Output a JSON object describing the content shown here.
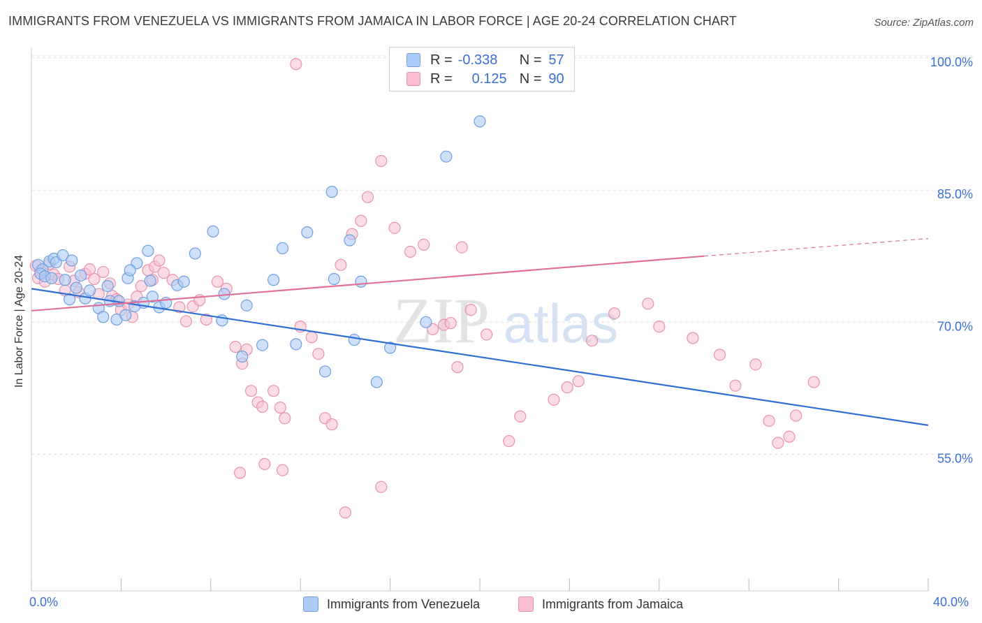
{
  "title": "IMMIGRANTS FROM VENEZUELA VS IMMIGRANTS FROM JAMAICA IN LABOR FORCE | AGE 20-24 CORRELATION CHART",
  "source": "Source: ZipAtlas.com",
  "watermark": {
    "zip": "ZIP",
    "atlas": "atlas"
  },
  "legend": {
    "venezuela": {
      "r_label": "R =",
      "r_value": "-0.338",
      "n_label": "N =",
      "n_value": "57"
    },
    "jamaica": {
      "r_label": "R =",
      "r_value": "0.125",
      "n_label": "N =",
      "n_value": "90"
    }
  },
  "bottom_legend": {
    "venezuela": "Immigrants from Venezuela",
    "jamaica": "Immigrants from Jamaica"
  },
  "colors": {
    "venezuela_fill": "#aecbf5",
    "venezuela_stroke": "#6f9fe0",
    "venezuela_line": "#2f6fd3",
    "jamaica_fill": "#f7bfd0",
    "jamaica_stroke": "#e892ae",
    "jamaica_line": "#e0709a",
    "axis_text": "#3a6fd8"
  },
  "chart_data": {
    "type": "scatter",
    "title": "IMMIGRANTS FROM VENEZUELA VS IMMIGRANTS FROM JAMAICA IN LABOR FORCE | AGE 20-24 CORRELATION CHART",
    "xlabel": "",
    "ylabel": "In Labor Force | Age 20-24",
    "xlim": [
      0,
      40
    ],
    "ylim": [
      39.5,
      101.5
    ],
    "x_tick_labels": [
      "0.0%",
      "40.0%"
    ],
    "y_ticks": [
      55,
      70,
      85,
      100
    ],
    "y_tick_labels": [
      "55.0%",
      "70.0%",
      "85.0%",
      "100.0%"
    ],
    "grid": true,
    "series": [
      {
        "name": "Immigrants from Venezuela",
        "trend": {
          "x": [
            0,
            40
          ],
          "y": [
            73.8,
            58.3
          ]
        },
        "points": [
          [
            0.3,
            76.5
          ],
          [
            0.5,
            76.0
          ],
          [
            0.4,
            75.5
          ],
          [
            0.8,
            76.9
          ],
          [
            0.6,
            75.2
          ],
          [
            1.0,
            77.2
          ],
          [
            1.1,
            76.8
          ],
          [
            0.9,
            75.0
          ],
          [
            1.4,
            77.6
          ],
          [
            1.8,
            77.0
          ],
          [
            1.5,
            74.8
          ],
          [
            2.2,
            75.3
          ],
          [
            2.4,
            72.7
          ],
          [
            1.7,
            72.6
          ],
          [
            2.6,
            73.6
          ],
          [
            2.0,
            73.9
          ],
          [
            3.4,
            74.1
          ],
          [
            3.5,
            72.4
          ],
          [
            3.0,
            71.6
          ],
          [
            3.2,
            70.6
          ],
          [
            3.8,
            70.3
          ],
          [
            4.2,
            70.8
          ],
          [
            4.6,
            71.8
          ],
          [
            4.3,
            75.0
          ],
          [
            5.3,
            74.7
          ],
          [
            4.7,
            76.7
          ],
          [
            4.4,
            75.9
          ],
          [
            5.0,
            72.2
          ],
          [
            5.4,
            72.9
          ],
          [
            5.7,
            71.7
          ],
          [
            6.0,
            72.2
          ],
          [
            6.5,
            74.2
          ],
          [
            6.8,
            74.6
          ],
          [
            7.3,
            77.8
          ],
          [
            8.1,
            80.3
          ],
          [
            5.2,
            78.1
          ],
          [
            3.9,
            72.4
          ],
          [
            8.6,
            73.2
          ],
          [
            8.5,
            70.2
          ],
          [
            9.6,
            71.9
          ],
          [
            10.3,
            67.4
          ],
          [
            9.4,
            66.1
          ],
          [
            10.8,
            74.8
          ],
          [
            13.4,
            84.8
          ],
          [
            12.3,
            80.2
          ],
          [
            11.2,
            78.4
          ],
          [
            13.5,
            74.9
          ],
          [
            14.4,
            68.0
          ],
          [
            16.0,
            67.1
          ],
          [
            17.6,
            70.0
          ],
          [
            20.0,
            92.8
          ],
          [
            18.5,
            88.8
          ],
          [
            14.2,
            79.3
          ],
          [
            14.7,
            74.6
          ],
          [
            11.8,
            67.5
          ],
          [
            13.1,
            64.4
          ],
          [
            15.4,
            63.2
          ]
        ]
      },
      {
        "name": "Immigrants from Jamaica",
        "trend": {
          "x": [
            0,
            30
          ],
          "y": [
            71.3,
            77.5
          ],
          "dashed_to": [
            40,
            79.5
          ]
        },
        "points": [
          [
            0.2,
            76.4
          ],
          [
            0.4,
            75.8
          ],
          [
            0.3,
            75.0
          ],
          [
            0.6,
            74.6
          ],
          [
            0.8,
            76.6
          ],
          [
            1.0,
            75.4
          ],
          [
            1.2,
            74.9
          ],
          [
            1.5,
            73.6
          ],
          [
            1.7,
            76.3
          ],
          [
            1.9,
            74.7
          ],
          [
            2.1,
            73.4
          ],
          [
            2.4,
            75.5
          ],
          [
            2.6,
            76.0
          ],
          [
            2.8,
            74.9
          ],
          [
            3.0,
            73.2
          ],
          [
            3.2,
            75.7
          ],
          [
            3.5,
            74.4
          ],
          [
            3.6,
            73.0
          ],
          [
            3.8,
            72.6
          ],
          [
            4.0,
            71.4
          ],
          [
            4.3,
            72.0
          ],
          [
            4.5,
            70.6
          ],
          [
            4.7,
            72.9
          ],
          [
            4.9,
            74.1
          ],
          [
            5.2,
            75.9
          ],
          [
            5.4,
            74.8
          ],
          [
            5.5,
            76.3
          ],
          [
            5.7,
            77.0
          ],
          [
            5.9,
            75.6
          ],
          [
            6.3,
            74.8
          ],
          [
            6.6,
            71.7
          ],
          [
            6.9,
            70.1
          ],
          [
            7.2,
            71.8
          ],
          [
            7.5,
            72.5
          ],
          [
            7.8,
            70.3
          ],
          [
            8.3,
            74.6
          ],
          [
            8.7,
            73.8
          ],
          [
            9.1,
            67.2
          ],
          [
            9.4,
            65.3
          ],
          [
            9.6,
            66.9
          ],
          [
            9.8,
            62.2
          ],
          [
            10.1,
            60.9
          ],
          [
            10.3,
            60.4
          ],
          [
            10.8,
            62.2
          ],
          [
            11.1,
            60.3
          ],
          [
            11.3,
            59.1
          ],
          [
            12.0,
            69.5
          ],
          [
            12.5,
            68.3
          ],
          [
            12.8,
            66.4
          ],
          [
            13.1,
            59.1
          ],
          [
            13.4,
            58.4
          ],
          [
            13.8,
            76.5
          ],
          [
            14.3,
            80.0
          ],
          [
            14.7,
            81.5
          ],
          [
            15.0,
            84.2
          ],
          [
            15.6,
            88.3
          ],
          [
            16.2,
            80.7
          ],
          [
            16.9,
            78.0
          ],
          [
            17.5,
            78.8
          ],
          [
            17.9,
            69.2
          ],
          [
            18.4,
            69.7
          ],
          [
            18.7,
            69.9
          ],
          [
            19.0,
            64.9
          ],
          [
            19.2,
            78.5
          ],
          [
            19.6,
            71.4
          ],
          [
            20.3,
            68.6
          ],
          [
            21.3,
            56.5
          ],
          [
            21.8,
            59.3
          ],
          [
            23.3,
            61.2
          ],
          [
            23.9,
            62.6
          ],
          [
            24.4,
            63.3
          ],
          [
            25.0,
            67.9
          ],
          [
            26.0,
            71.0
          ],
          [
            27.5,
            72.1
          ],
          [
            28.0,
            69.5
          ],
          [
            29.5,
            68.2
          ],
          [
            30.7,
            66.3
          ],
          [
            31.4,
            62.8
          ],
          [
            32.3,
            65.2
          ],
          [
            32.9,
            58.8
          ],
          [
            33.3,
            56.3
          ],
          [
            33.8,
            57.0
          ],
          [
            34.1,
            59.4
          ],
          [
            34.9,
            63.2
          ],
          [
            9.3,
            52.9
          ],
          [
            10.4,
            53.9
          ],
          [
            11.2,
            53.2
          ],
          [
            14.0,
            48.4
          ],
          [
            15.6,
            51.3
          ],
          [
            11.8,
            99.3
          ]
        ]
      }
    ]
  }
}
